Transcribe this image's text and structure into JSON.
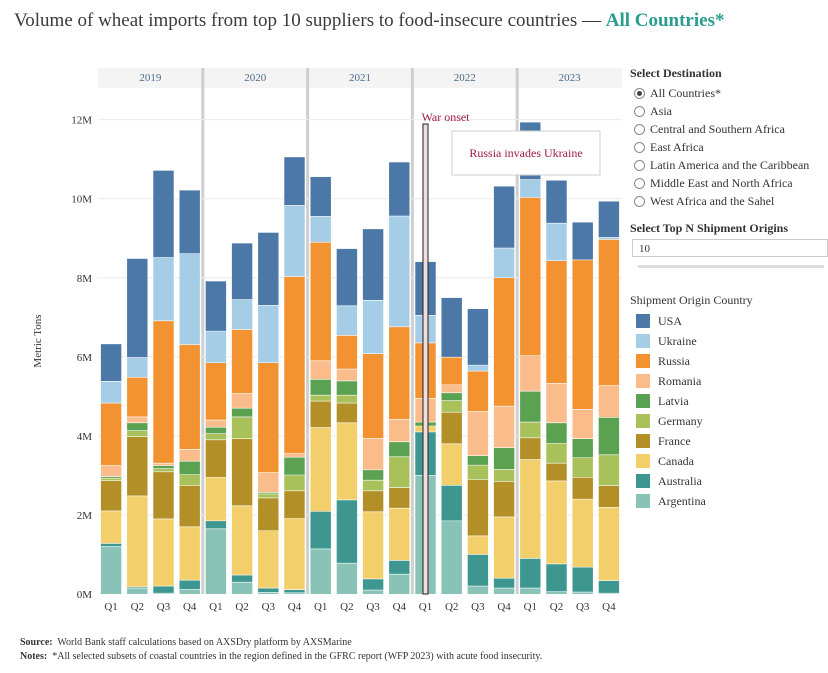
{
  "title": {
    "main": "Volume of wheat imports from top 10 suppliers to food-insecure countries —",
    "highlight": "All Countries*"
  },
  "chart_data": {
    "type": "bar",
    "stacked": true,
    "ylabel": "Metric Tons",
    "yticks": [
      "0M",
      "2M",
      "4M",
      "6M",
      "8M",
      "10M",
      "12M"
    ],
    "ylim": [
      0,
      12800000
    ],
    "years": [
      "2019",
      "2020",
      "2021",
      "2022",
      "2023"
    ],
    "quarters": [
      "Q1",
      "Q2",
      "Q3",
      "Q4"
    ],
    "categories": [
      "2019 Q1",
      "2019 Q2",
      "2019 Q3",
      "2019 Q4",
      "2020 Q1",
      "2020 Q2",
      "2020 Q3",
      "2020 Q4",
      "2021 Q1",
      "2021 Q2",
      "2021 Q3",
      "2021 Q4",
      "2022 Q1",
      "2022 Q2",
      "2022 Q3",
      "2022 Q4",
      "2023 Q1",
      "2023 Q2",
      "2023 Q3",
      "2023 Q4"
    ],
    "annotation": {
      "label": "War onset",
      "tooltip": "Russia invades Ukraine",
      "at": "2022 Q1"
    },
    "series": [
      {
        "name": "Argentina",
        "color": "#89c3b8",
        "values": [
          1200000,
          150000,
          20000,
          120000,
          1650000,
          300000,
          40000,
          30000,
          1140000,
          780000,
          100000,
          500000,
          3000000,
          1850000,
          200000,
          150000,
          150000,
          60000,
          50000,
          20000
        ]
      },
      {
        "name": "Australia",
        "color": "#3e9690",
        "values": [
          80000,
          30000,
          180000,
          230000,
          200000,
          180000,
          110000,
          80000,
          950000,
          1600000,
          280000,
          350000,
          1100000,
          900000,
          800000,
          250000,
          750000,
          700000,
          630000,
          320000
        ]
      },
      {
        "name": "Canada",
        "color": "#f3cf6b",
        "values": [
          820000,
          2300000,
          1700000,
          1350000,
          1100000,
          1750000,
          1450000,
          1800000,
          2120000,
          1950000,
          1700000,
          1320000,
          150000,
          1050000,
          470000,
          1550000,
          2500000,
          2100000,
          1720000,
          1850000
        ]
      },
      {
        "name": "France",
        "color": "#b38f28",
        "values": [
          770000,
          1500000,
          1190000,
          1050000,
          950000,
          1700000,
          830000,
          700000,
          670000,
          500000,
          530000,
          520000,
          0,
          800000,
          1420000,
          900000,
          550000,
          450000,
          550000,
          550000
        ]
      },
      {
        "name": "Germany",
        "color": "#a9c15a",
        "values": [
          60000,
          150000,
          80000,
          270000,
          160000,
          550000,
          100000,
          400000,
          150000,
          200000,
          270000,
          780000,
          0,
          290000,
          370000,
          300000,
          400000,
          500000,
          500000,
          780000
        ]
      },
      {
        "name": "Latvia",
        "color": "#5ba152",
        "values": [
          40000,
          200000,
          80000,
          340000,
          160000,
          220000,
          40000,
          450000,
          400000,
          360000,
          260000,
          380000,
          100000,
          200000,
          240000,
          550000,
          780000,
          520000,
          480000,
          950000
        ]
      },
      {
        "name": "Romania",
        "color": "#fbbc8c",
        "values": [
          280000,
          150000,
          60000,
          300000,
          180000,
          370000,
          500000,
          90000,
          470000,
          300000,
          800000,
          570000,
          600000,
          200000,
          1120000,
          1050000,
          900000,
          1000000,
          740000,
          800000
        ]
      },
      {
        "name": "Russia",
        "color": "#f39230",
        "values": [
          1580000,
          1000000,
          3600000,
          2650000,
          1450000,
          1620000,
          2780000,
          4480000,
          3000000,
          850000,
          2140000,
          2340000,
          1400000,
          700000,
          1020000,
          3250000,
          4000000,
          3100000,
          3780000,
          3700000
        ]
      },
      {
        "name": "Ukraine",
        "color": "#a6cde6",
        "values": [
          550000,
          500000,
          1600000,
          2300000,
          800000,
          760000,
          1450000,
          1800000,
          650000,
          750000,
          1350000,
          2800000,
          700000,
          0,
          150000,
          750000,
          450000,
          950000,
          0,
          50000
        ]
      },
      {
        "name": "USA",
        "color": "#4c78a8",
        "values": [
          940000,
          2500000,
          2200000,
          1600000,
          1260000,
          1420000,
          1840000,
          1220000,
          1000000,
          1440000,
          1800000,
          1360000,
          1350000,
          1500000,
          1420000,
          1560000,
          1450000,
          1080000,
          950000,
          910000
        ]
      }
    ]
  },
  "panel": {
    "destination_title": "Select Destination",
    "destinations": [
      "All Countries*",
      "Asia",
      "Central and Southern Africa",
      "East Africa",
      "Latin America and the Caribbean",
      "Middle East and North Africa",
      "West Africa and the Sahel"
    ],
    "selected_destination": "All Countries*",
    "topn_title": "Select Top N Shipment Origins",
    "topn_value": "10",
    "legend_title": "Shipment Origin Country",
    "legend": [
      {
        "name": "USA",
        "color": "#4c78a8"
      },
      {
        "name": "Ukraine",
        "color": "#a6cde6"
      },
      {
        "name": "Russia",
        "color": "#f39230"
      },
      {
        "name": "Romania",
        "color": "#fbbc8c"
      },
      {
        "name": "Latvia",
        "color": "#5ba152"
      },
      {
        "name": "Germany",
        "color": "#a9c15a"
      },
      {
        "name": "France",
        "color": "#b38f28"
      },
      {
        "name": "Canada",
        "color": "#f3cf6b"
      },
      {
        "name": "Australia",
        "color": "#3e9690"
      },
      {
        "name": "Argentina",
        "color": "#89c3b8"
      }
    ]
  },
  "footer": {
    "source_label": "Source:",
    "source_text": "World Bank staff calculations based on AXSDry platform by AXSMarine",
    "notes_label": "Notes:",
    "notes_text": "*All selected subsets of coastal countries in the region defined in the GFRC report (WFP 2023) with acute food insecurity."
  }
}
